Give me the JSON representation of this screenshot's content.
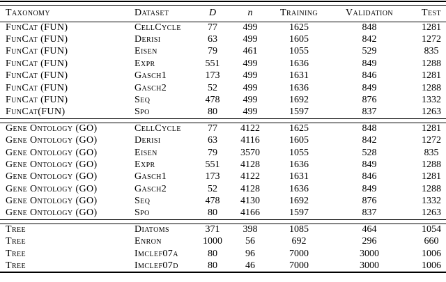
{
  "table": {
    "columns": [
      {
        "key": "taxonomy",
        "label": "Taxonomy",
        "math": false
      },
      {
        "key": "dataset",
        "label": "Dataset",
        "math": false
      },
      {
        "key": "d",
        "label": "D",
        "math": true
      },
      {
        "key": "n",
        "label": "n",
        "math": true
      },
      {
        "key": "training",
        "label": "Training",
        "math": false
      },
      {
        "key": "validation",
        "label": "Validation",
        "math": false
      },
      {
        "key": "test",
        "label": "Test",
        "math": false
      }
    ],
    "sections": [
      {
        "name": "funcat",
        "rows": [
          [
            "FunCat (FUN)",
            "CellCycle",
            "77",
            "499",
            "1625",
            "848",
            "1281"
          ],
          [
            "FunCat (FUN)",
            "Derisi",
            "63",
            "499",
            "1605",
            "842",
            "1272"
          ],
          [
            "FunCat (FUN)",
            "Eisen",
            "79",
            "461",
            "1055",
            "529",
            "835"
          ],
          [
            "FunCat (FUN)",
            "Expr",
            "551",
            "499",
            "1636",
            "849",
            "1288"
          ],
          [
            "FunCat (FUN)",
            "Gasch1",
            "173",
            "499",
            "1631",
            "846",
            "1281"
          ],
          [
            "FunCat (FUN)",
            "Gasch2",
            "52",
            "499",
            "1636",
            "849",
            "1288"
          ],
          [
            "FunCat (FUN)",
            "Seq",
            "478",
            "499",
            "1692",
            "876",
            "1332"
          ],
          [
            "FunCat(FUN)",
            "Spo",
            "80",
            "499",
            "1597",
            "837",
            "1263"
          ]
        ]
      },
      {
        "name": "gene-ontology",
        "rows": [
          [
            "Gene Ontology (GO)",
            "CellCycle",
            "77",
            "4122",
            "1625",
            "848",
            "1281"
          ],
          [
            "Gene Ontology (GO)",
            "Derisi",
            "63",
            "4116",
            "1605",
            "842",
            "1272"
          ],
          [
            "Gene Ontology (GO)",
            "Eisen",
            "79",
            "3570",
            "1055",
            "528",
            "835"
          ],
          [
            "Gene Ontology (GO)",
            "Expr",
            "551",
            "4128",
            "1636",
            "849",
            "1288"
          ],
          [
            "Gene Ontology (GO)",
            "Gasch1",
            "173",
            "4122",
            "1631",
            "846",
            "1281"
          ],
          [
            "Gene Ontology (GO)",
            "Gasch2",
            "52",
            "4128",
            "1636",
            "849",
            "1288"
          ],
          [
            "Gene Ontology (GO)",
            "Seq",
            "478",
            "4130",
            "1692",
            "876",
            "1332"
          ],
          [
            "Gene Ontology (GO)",
            "Spo",
            "80",
            "4166",
            "1597",
            "837",
            "1263"
          ]
        ]
      },
      {
        "name": "tree",
        "rows": [
          [
            "Tree",
            "Diatoms",
            "371",
            "398",
            "1085",
            "464",
            "1054"
          ],
          [
            "Tree",
            "Enron",
            "1000",
            "56",
            "692",
            "296",
            "660"
          ],
          [
            "Tree",
            "Imclef07a",
            "80",
            "96",
            "7000",
            "3000",
            "1006"
          ],
          [
            "Tree",
            "Imclef07d",
            "80",
            "46",
            "7000",
            "3000",
            "1006"
          ]
        ]
      }
    ],
    "colors": {
      "text": "#000000",
      "background": "#ffffff",
      "rule": "#000000"
    }
  }
}
